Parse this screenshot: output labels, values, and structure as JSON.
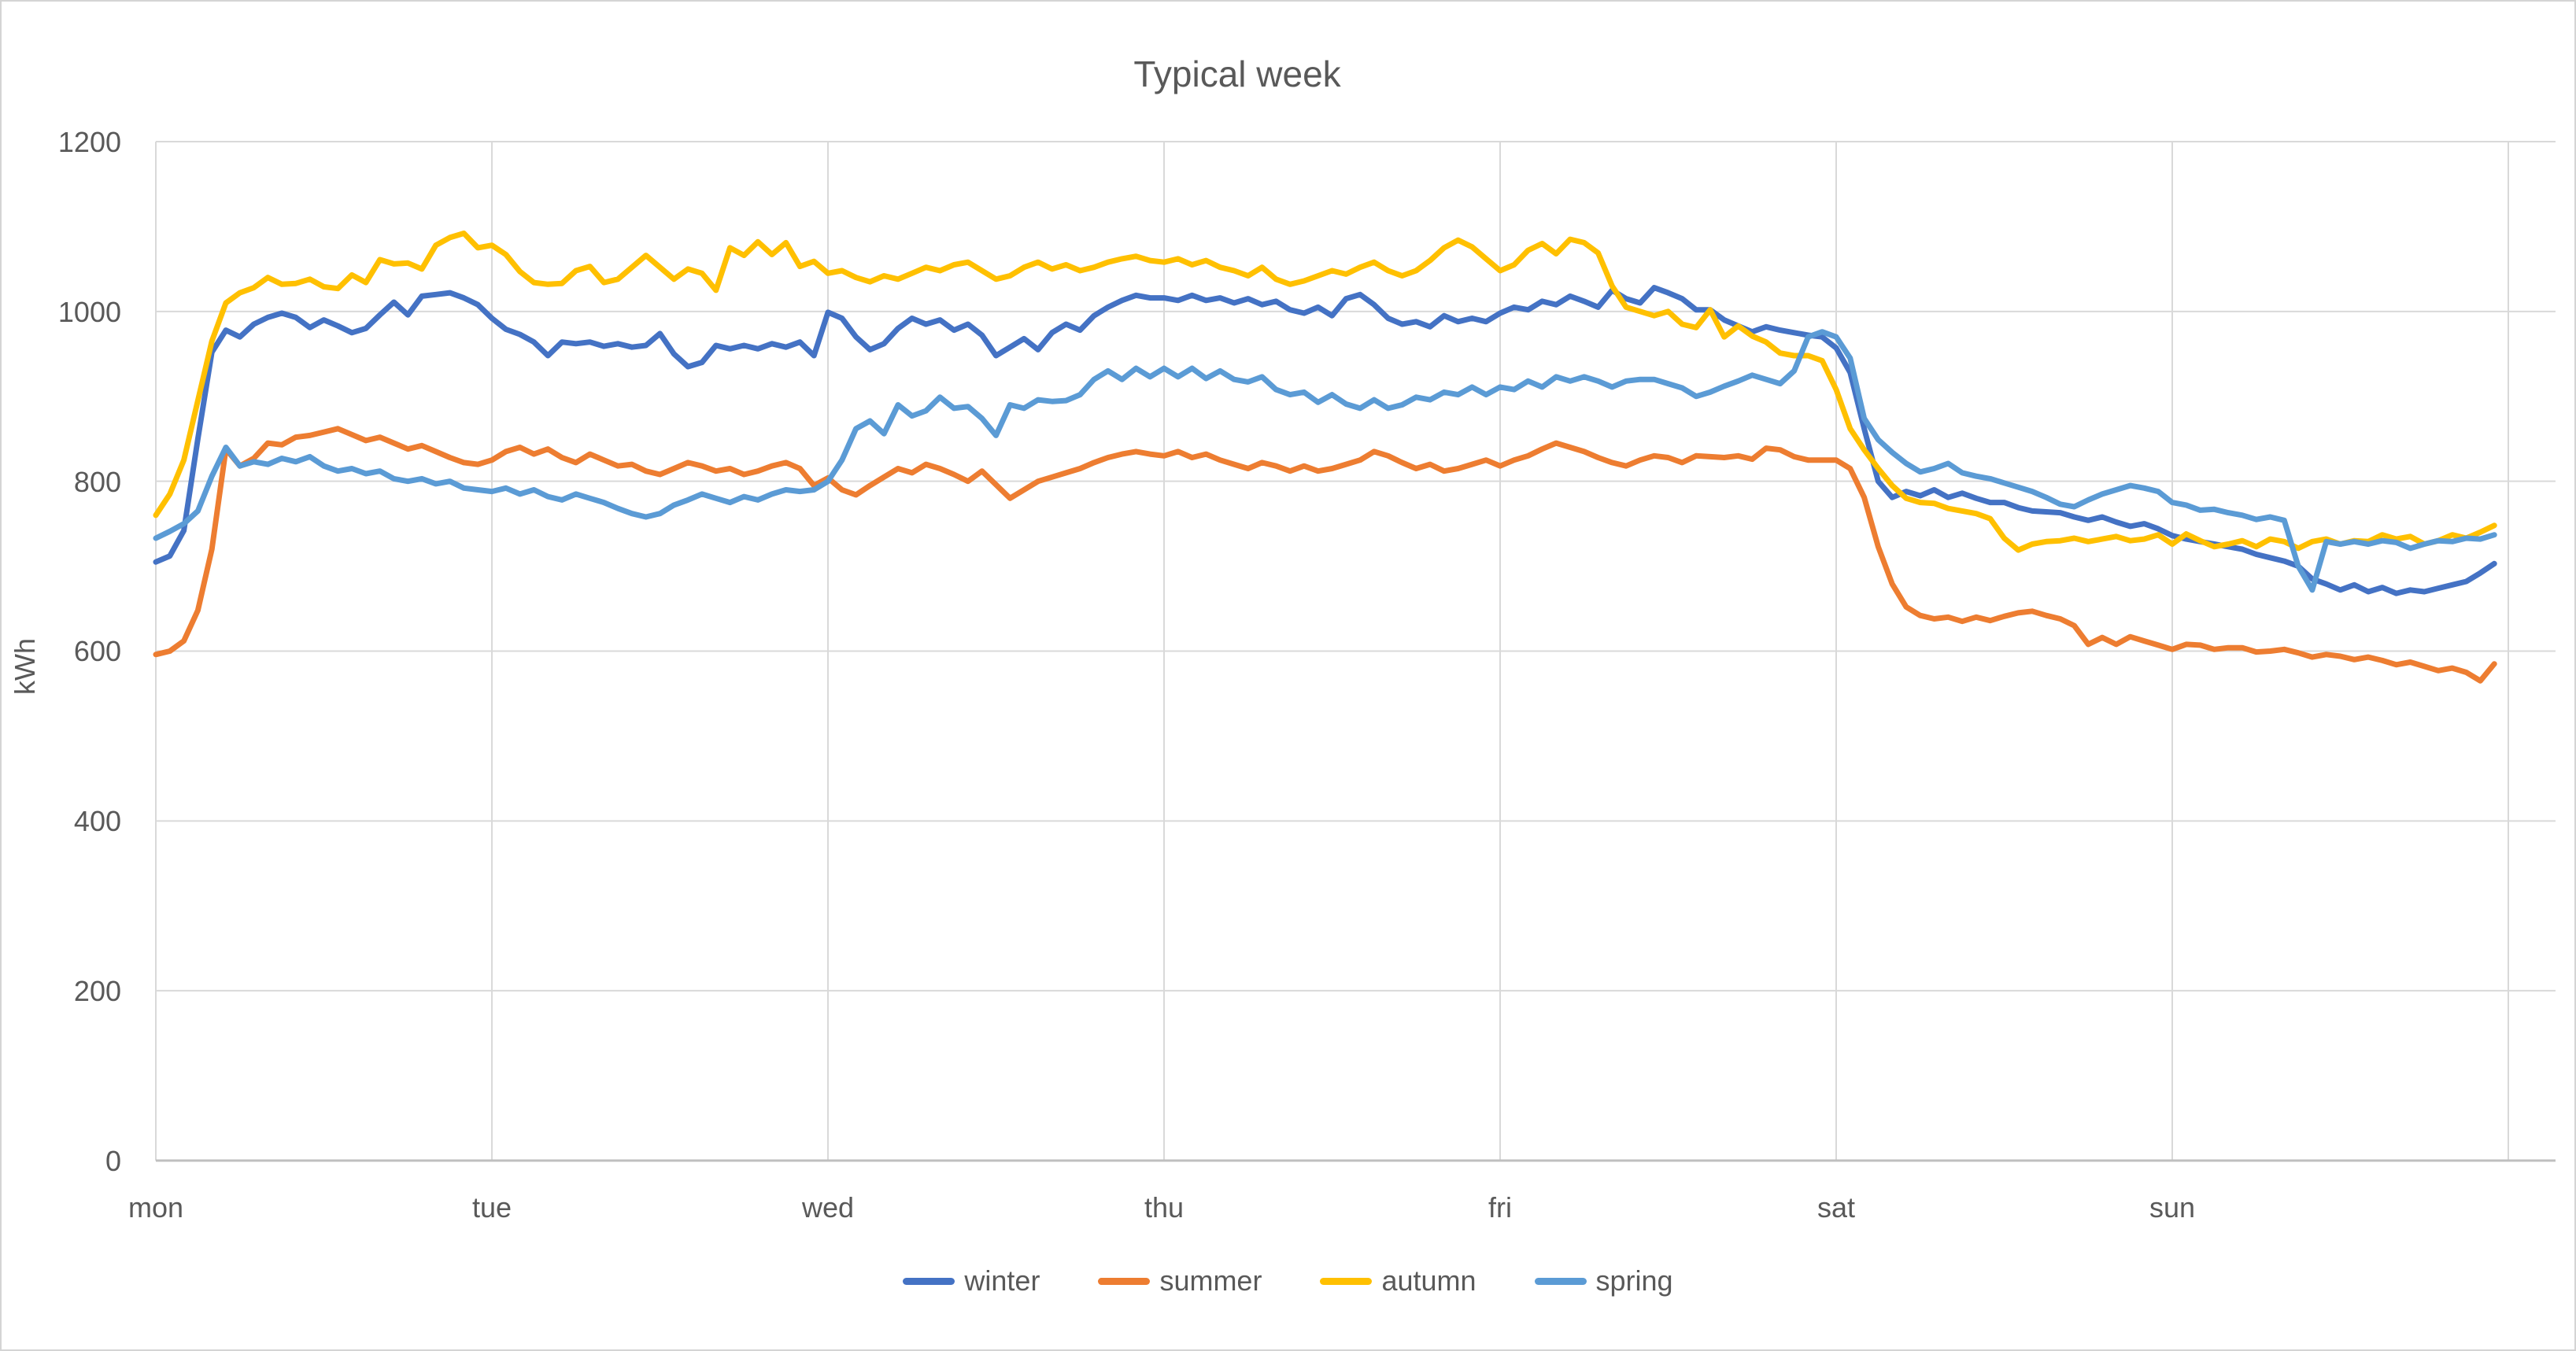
{
  "title": "Typical week",
  "y_axis": {
    "unit_label": "kWh",
    "tick_labels": [
      "0",
      "200",
      "400",
      "600",
      "800",
      "1000",
      "1200"
    ]
  },
  "x_axis": {
    "categories": [
      "mon",
      "tue",
      "wed",
      "thu",
      "fri",
      "sat",
      "sun"
    ]
  },
  "legend": {
    "items": [
      {
        "label": "winter",
        "color": "#4472C4"
      },
      {
        "label": "summer",
        "color": "#ED7D31"
      },
      {
        "label": "autumn",
        "color": "#FFC000"
      },
      {
        "label": "spring",
        "color": "#5B9BD5"
      }
    ]
  },
  "style_colors": {
    "gridline": "#D9D9D9",
    "axis_line": "#BFBFBF",
    "text": "#595959",
    "background": "#FFFFFF"
  },
  "chart_data": {
    "type": "line",
    "title": "Typical week",
    "ylabel": "kWh",
    "ylim": [
      0,
      1200
    ],
    "ytick_step": 200,
    "grid": true,
    "legend_position": "bottom",
    "categories": [
      "mon",
      "tue",
      "wed",
      "thu",
      "fri",
      "sat",
      "sun"
    ],
    "points_per_day": 24,
    "x_unit": "hour-of-week",
    "series": [
      {
        "name": "winter",
        "color": "#4472C4",
        "values": [
          705,
          712,
          742,
          850,
          952,
          978,
          970,
          985,
          993,
          998,
          993,
          981,
          990,
          983,
          975,
          980,
          996,
          1011,
          996,
          1018,
          1020,
          1022,
          1016,
          1008,
          992,
          979,
          973,
          964,
          948,
          964,
          962,
          964,
          959,
          962,
          958,
          960,
          974,
          950,
          935,
          940,
          960,
          956,
          960,
          956,
          962,
          958,
          964,
          948,
          999,
          992,
          970,
          955,
          962,
          980,
          992,
          985,
          990,
          978,
          985,
          972,
          948,
          958,
          968,
          955,
          975,
          985,
          978,
          995,
          1005,
          1013,
          1019,
          1016,
          1016,
          1013,
          1019,
          1013,
          1016,
          1010,
          1015,
          1008,
          1012,
          1002,
          998,
          1005,
          995,
          1015,
          1020,
          1008,
          992,
          985,
          988,
          982,
          995,
          988,
          992,
          988,
          998,
          1005,
          1002,
          1012,
          1008,
          1018,
          1012,
          1005,
          1025,
          1015,
          1010,
          1028,
          1022,
          1015,
          1002,
          1002,
          990,
          983,
          976,
          982,
          978,
          975,
          972,
          970,
          957,
          928,
          862,
          800,
          781,
          788,
          783,
          790,
          781,
          786,
          780,
          775,
          775,
          769,
          765,
          764,
          763,
          758,
          754,
          758,
          752,
          747,
          750,
          744,
          736,
          732,
          729,
          726,
          723,
          720,
          714,
          710,
          706,
          700,
          685,
          679,
          672,
          678,
          670,
          675,
          668,
          672,
          670,
          674,
          678,
          682,
          692,
          703
        ]
      },
      {
        "name": "summer",
        "color": "#ED7D31",
        "values": [
          596,
          600,
          612,
          648,
          720,
          838,
          818,
          827,
          845,
          843,
          852,
          854,
          858,
          862,
          855,
          848,
          852,
          845,
          838,
          842,
          835,
          828,
          822,
          820,
          825,
          835,
          840,
          832,
          838,
          828,
          822,
          832,
          825,
          818,
          820,
          812,
          808,
          815,
          822,
          818,
          812,
          815,
          808,
          812,
          818,
          822,
          815,
          795,
          804,
          790,
          784,
          795,
          805,
          815,
          810,
          820,
          815,
          808,
          800,
          812,
          796,
          780,
          790,
          800,
          805,
          810,
          815,
          822,
          828,
          832,
          835,
          832,
          830,
          835,
          828,
          832,
          825,
          820,
          815,
          822,
          818,
          812,
          818,
          812,
          815,
          820,
          825,
          835,
          830,
          822,
          815,
          820,
          812,
          815,
          820,
          825,
          818,
          825,
          830,
          838,
          845,
          840,
          835,
          828,
          822,
          818,
          825,
          830,
          828,
          822,
          830,
          829,
          828,
          830,
          826,
          839,
          837,
          829,
          825,
          825,
          825,
          815,
          781,
          723,
          679,
          652,
          642,
          638,
          640,
          635,
          640,
          636,
          641,
          645,
          647,
          642,
          638,
          630,
          608,
          616,
          608,
          617,
          612,
          607,
          602,
          608,
          607,
          602,
          604,
          604,
          599,
          600,
          602,
          598,
          593,
          596,
          594,
          590,
          593,
          589,
          584,
          587,
          582,
          577,
          580,
          575,
          565,
          585
        ]
      },
      {
        "name": "autumn",
        "color": "#FFC000",
        "values": [
          760,
          785,
          825,
          895,
          965,
          1010,
          1022,
          1028,
          1040,
          1032,
          1033,
          1038,
          1029,
          1027,
          1043,
          1034,
          1061,
          1056,
          1057,
          1050,
          1078,
          1087,
          1092,
          1075,
          1078,
          1067,
          1047,
          1034,
          1032,
          1033,
          1048,
          1053,
          1034,
          1038,
          1052,
          1066,
          1052,
          1038,
          1050,
          1045,
          1025,
          1075,
          1066,
          1082,
          1067,
          1081,
          1053,
          1059,
          1045,
          1048,
          1040,
          1035,
          1042,
          1038,
          1045,
          1052,
          1048,
          1055,
          1058,
          1048,
          1038,
          1042,
          1052,
          1058,
          1050,
          1055,
          1048,
          1052,
          1058,
          1062,
          1065,
          1060,
          1058,
          1062,
          1055,
          1060,
          1052,
          1048,
          1042,
          1052,
          1038,
          1032,
          1036,
          1042,
          1048,
          1044,
          1052,
          1058,
          1048,
          1042,
          1048,
          1060,
          1075,
          1084,
          1076,
          1062,
          1048,
          1055,
          1072,
          1080,
          1068,
          1085,
          1081,
          1069,
          1030,
          1005,
          1000,
          995,
          1000,
          985,
          981,
          1002,
          970,
          983,
          971,
          964,
          951,
          948,
          948,
          942,
          908,
          862,
          837,
          815,
          795,
          780,
          775,
          774,
          768,
          765,
          762,
          756,
          733,
          719,
          726,
          729,
          730,
          733,
          729,
          732,
          735,
          730,
          732,
          737,
          726,
          738,
          730,
          723,
          726,
          730,
          723,
          732,
          729,
          721,
          729,
          732,
          726,
          730,
          729,
          737,
          732,
          735,
          726,
          730,
          737,
          733,
          740,
          748
        ]
      },
      {
        "name": "spring",
        "color": "#5B9BD5",
        "values": [
          733,
          741,
          750,
          765,
          806,
          840,
          818,
          823,
          820,
          827,
          823,
          829,
          818,
          812,
          815,
          809,
          812,
          803,
          800,
          803,
          797,
          800,
          792,
          790,
          788,
          792,
          785,
          790,
          782,
          778,
          785,
          780,
          775,
          768,
          762,
          758,
          762,
          772,
          778,
          785,
          780,
          775,
          782,
          778,
          785,
          790,
          788,
          790,
          800,
          825,
          862,
          871,
          856,
          890,
          877,
          883,
          899,
          886,
          888,
          874,
          854,
          890,
          886,
          896,
          894,
          895,
          902,
          920,
          930,
          920,
          933,
          923,
          933,
          923,
          933,
          921,
          930,
          920,
          917,
          923,
          908,
          902,
          905,
          893,
          902,
          891,
          886,
          896,
          886,
          890,
          899,
          896,
          905,
          902,
          911,
          902,
          911,
          908,
          918,
          911,
          923,
          918,
          923,
          918,
          911,
          918,
          920,
          920,
          915,
          910,
          900,
          905,
          912,
          918,
          925,
          920,
          915,
          930,
          970,
          976,
          970,
          945,
          874,
          849,
          834,
          821,
          811,
          815,
          821,
          810,
          806,
          803,
          798,
          793,
          788,
          781,
          773,
          770,
          778,
          785,
          790,
          795,
          792,
          788,
          775,
          772,
          766,
          767,
          763,
          760,
          755,
          758,
          754,
          700,
          672,
          729,
          726,
          729,
          726,
          730,
          728,
          721,
          726,
          730,
          729,
          733,
          732,
          737
        ]
      }
    ],
    "layout": {
      "plot_left": 196,
      "plot_right": 3245,
      "plot_top": 178,
      "plot_bottom": 1473,
      "day_width": 427
    }
  }
}
